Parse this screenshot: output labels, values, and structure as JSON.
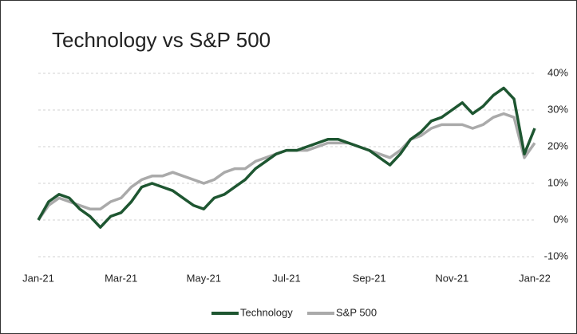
{
  "chart_data": {
    "type": "line",
    "title": "Technology vs S&P 500",
    "categories": [
      "Jan-21",
      null,
      null,
      null,
      null,
      null,
      null,
      null,
      "Mar-21",
      null,
      null,
      null,
      null,
      null,
      null,
      null,
      "May-21",
      null,
      null,
      null,
      null,
      null,
      null,
      null,
      "Jul-21",
      null,
      null,
      null,
      null,
      null,
      null,
      null,
      "Sep-21",
      null,
      null,
      null,
      null,
      null,
      null,
      null,
      "Nov-21",
      null,
      null,
      null,
      null,
      null,
      null,
      null,
      "Jan-22"
    ],
    "series": [
      {
        "name": "Technology",
        "color": "#1e5631",
        "values": [
          0,
          5,
          7,
          6,
          3,
          1,
          -2,
          1,
          2,
          5,
          9,
          10,
          9,
          8,
          6,
          4,
          3,
          6,
          7,
          9,
          11,
          14,
          16,
          18,
          19,
          19,
          20,
          21,
          22,
          22,
          21,
          20,
          19,
          17,
          15,
          18,
          22,
          24,
          27,
          28,
          30,
          32,
          29,
          31,
          34,
          36,
          33,
          18,
          25
        ]
      },
      {
        "name": "S&P 500",
        "color": "#aaaaaa",
        "values": [
          0,
          4,
          6,
          5,
          4,
          3,
          3,
          5,
          6,
          9,
          11,
          12,
          12,
          13,
          12,
          11,
          10,
          11,
          13,
          14,
          14,
          16,
          17,
          18,
          19,
          19,
          19,
          20,
          21,
          21,
          21,
          20,
          19,
          18,
          17,
          19,
          22,
          23,
          25,
          26,
          26,
          26,
          25,
          26,
          28,
          29,
          28,
          17,
          21
        ]
      }
    ],
    "ylim": [
      -10,
      40
    ],
    "yticks": [
      {
        "value": -10,
        "label": "-10%"
      },
      {
        "value": 0,
        "label": "0%"
      },
      {
        "value": 10,
        "label": "10%"
      },
      {
        "value": 20,
        "label": "20%"
      },
      {
        "value": 30,
        "label": "30%"
      },
      {
        "value": 40,
        "label": "40%"
      }
    ],
    "grid": true,
    "legend": "bottom"
  }
}
